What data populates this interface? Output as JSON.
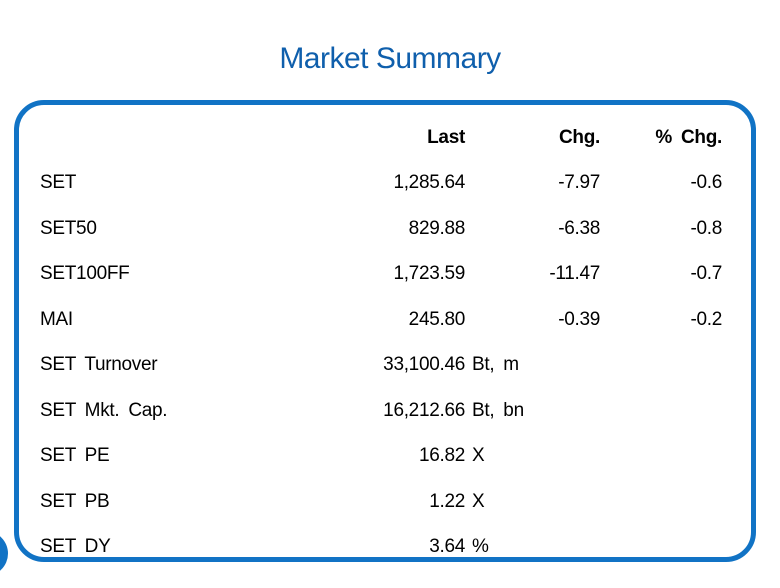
{
  "page": {
    "title": "Market Summary"
  },
  "table": {
    "headers": {
      "last": "Last",
      "chg": "Chg.",
      "pchg": "% Chg."
    },
    "rows": [
      {
        "label": "SET",
        "last": "1,285.64",
        "unit": "",
        "chg": "-7.97",
        "pchg": "-0.6"
      },
      {
        "label": "SET50",
        "last": "829.88",
        "unit": "",
        "chg": "-6.38",
        "pchg": "-0.8"
      },
      {
        "label": "SET100FF",
        "last": "1,723.59",
        "unit": "",
        "chg": "-11.47",
        "pchg": "-0.7"
      },
      {
        "label": "MAI",
        "last": "245.80",
        "unit": "",
        "chg": "-0.39",
        "pchg": "-0.2"
      },
      {
        "label": "SET Turnover",
        "last": "33,100.46",
        "unit": "Bt, m",
        "chg": "",
        "pchg": ""
      },
      {
        "label": "SET Mkt. Cap.",
        "last": "16,212.66",
        "unit": "Bt, bn",
        "chg": "",
        "pchg": ""
      },
      {
        "label": "SET PE",
        "last": "16.82",
        "unit": "X",
        "chg": "",
        "pchg": ""
      },
      {
        "label": "SET PB",
        "last": "1.22",
        "unit": "X",
        "chg": "",
        "pchg": ""
      },
      {
        "label": "SET DY",
        "last": "3.64",
        "unit": "%",
        "chg": "",
        "pchg": ""
      }
    ]
  },
  "colors": {
    "accent": "#1173c5",
    "title": "#0f5fac",
    "text": "#000000",
    "bg": "#ffffff"
  }
}
